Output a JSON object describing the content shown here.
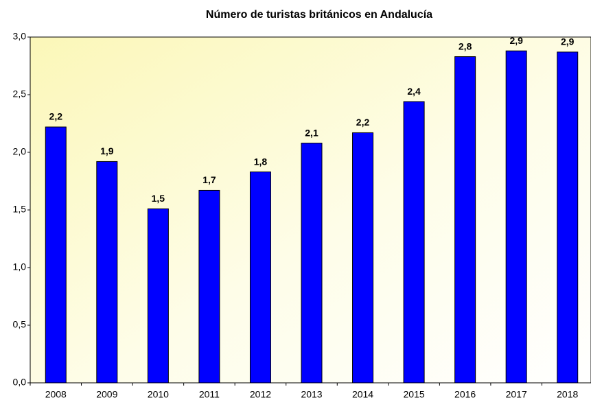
{
  "chart_data": {
    "type": "bar",
    "title": "Número de turistas británicos en Andalucía",
    "categories": [
      "2008",
      "2009",
      "2010",
      "2011",
      "2012",
      "2013",
      "2014",
      "2015",
      "2016",
      "2017",
      "2018"
    ],
    "values": [
      2.22,
      1.92,
      1.51,
      1.67,
      1.83,
      2.08,
      2.17,
      2.44,
      2.83,
      2.88,
      2.87
    ],
    "value_labels": [
      "2,2",
      "1,9",
      "1,5",
      "1,7",
      "1,8",
      "2,1",
      "2,2",
      "2,4",
      "2,8",
      "2,9",
      "2,9"
    ],
    "color": "#0000ff",
    "ylim": [
      0,
      3
    ],
    "yticks": [
      {
        "value": 0,
        "label": "0,0"
      },
      {
        "value": 0.5,
        "label": "0,5"
      },
      {
        "value": 1,
        "label": "1,0"
      },
      {
        "value": 1.5,
        "label": "1,5"
      },
      {
        "value": 2,
        "label": "2,0"
      },
      {
        "value": 2.5,
        "label": "2,5"
      },
      {
        "value": 3,
        "label": "3,0"
      }
    ],
    "grid": false
  }
}
